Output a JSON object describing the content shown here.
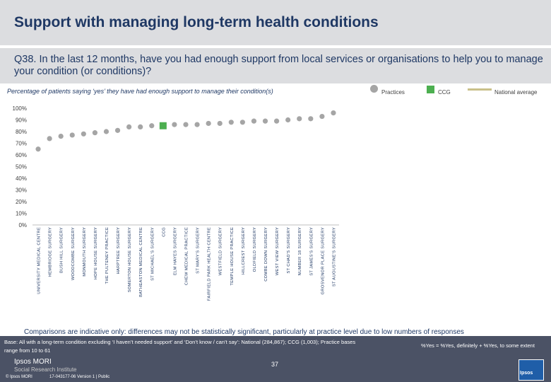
{
  "title": "Support with managing long-term health conditions",
  "question": "Q38. In the last 12 months, have you had enough support from local services or organisations to help you to manage your condition (or conditions)?",
  "subtitle": "Percentage of patients saying ‘yes’ they have had enough support to manage their condition(s)",
  "legend": {
    "practices": "Practices",
    "ccg": "CCG",
    "national": "National average"
  },
  "colors": {
    "practices": "#a5a5a5",
    "ccg": "#4caf50",
    "national": "#c9c08a",
    "text_navy": "#1f3864"
  },
  "chart_data": {
    "type": "scatter",
    "title": "",
    "xlabel": "",
    "ylabel": "",
    "ylim": [
      0,
      100
    ],
    "yticks": [
      "0%",
      "10%",
      "20%",
      "30%",
      "40%",
      "50%",
      "60%",
      "70%",
      "80%",
      "90%",
      "100%"
    ],
    "grid": false,
    "legend_position": "top-right",
    "categories": [
      "UNIVERSITY MEDICAL CENTRE",
      "HEMBRIDGE SURGERY",
      "BUSH HILL SURGERY",
      "WOODCOMBE SURGERY",
      "MONMOUTH SURGERY",
      "HOPE HOUSE SURGERY",
      "THE PULTENEY PRACTICE",
      "HARPTREE SURGERY",
      "SOMERTON HOUSE SURGERY",
      "BATHEASTON MEDICAL CENTRE",
      "ST MICHAEL'S SURGERY",
      "CCG",
      "ELM HAYES SURGERY",
      "CHEW MEDICAL PRACTICE",
      "ST MARY'S SURGERY",
      "FAIRFIELD PARK HEALTH CENTRE",
      "WESTFIELD SURGERY",
      "TEMPLE HOUSE PRACTICE",
      "HILLCREST SURGERY",
      "OLDFIELD SURGERY",
      "COMBE DOWN SURGERY",
      "WEST VIEW SURGERY",
      "ST CHAD'S SURGERY",
      "NUMBER 18 SURGERY",
      "ST JAMES'S SURGERY",
      "GROSVENOR PLACE SURGERY",
      "ST AUGUSTINE'S SURGERY"
    ],
    "values": [
      65,
      74,
      76,
      77,
      78,
      79,
      80,
      81,
      84,
      84,
      85,
      85,
      86,
      86,
      86,
      87,
      87,
      88,
      88,
      89,
      89,
      89,
      90,
      91,
      91,
      93,
      96
    ],
    "ccg_index": 11,
    "series": [
      {
        "name": "Practices"
      },
      {
        "name": "CCG"
      },
      {
        "name": "National average"
      }
    ]
  },
  "footer": {
    "comparisons": "Comparisons are indicative only: differences may not be statistically significant, particularly at practice level due to low numbers of responses",
    "base": "Base: All with a long-term condition excluding ‘I haven’t needed support’ and ‘Don’t know / can’t say’: National (284,867); CCG (1,003); Practice bases range from 10 to 61",
    "yes_note": "%Yes = %Yes, definitely + %Yes, to some extent",
    "page_number": "37",
    "brand": "Ipsos MORI",
    "brand_sub": "Social Research Institute",
    "copyright": "© Ipsos MORI",
    "job": "17-043177-06 Version 1 | Public",
    "logo": "Ipsos"
  }
}
